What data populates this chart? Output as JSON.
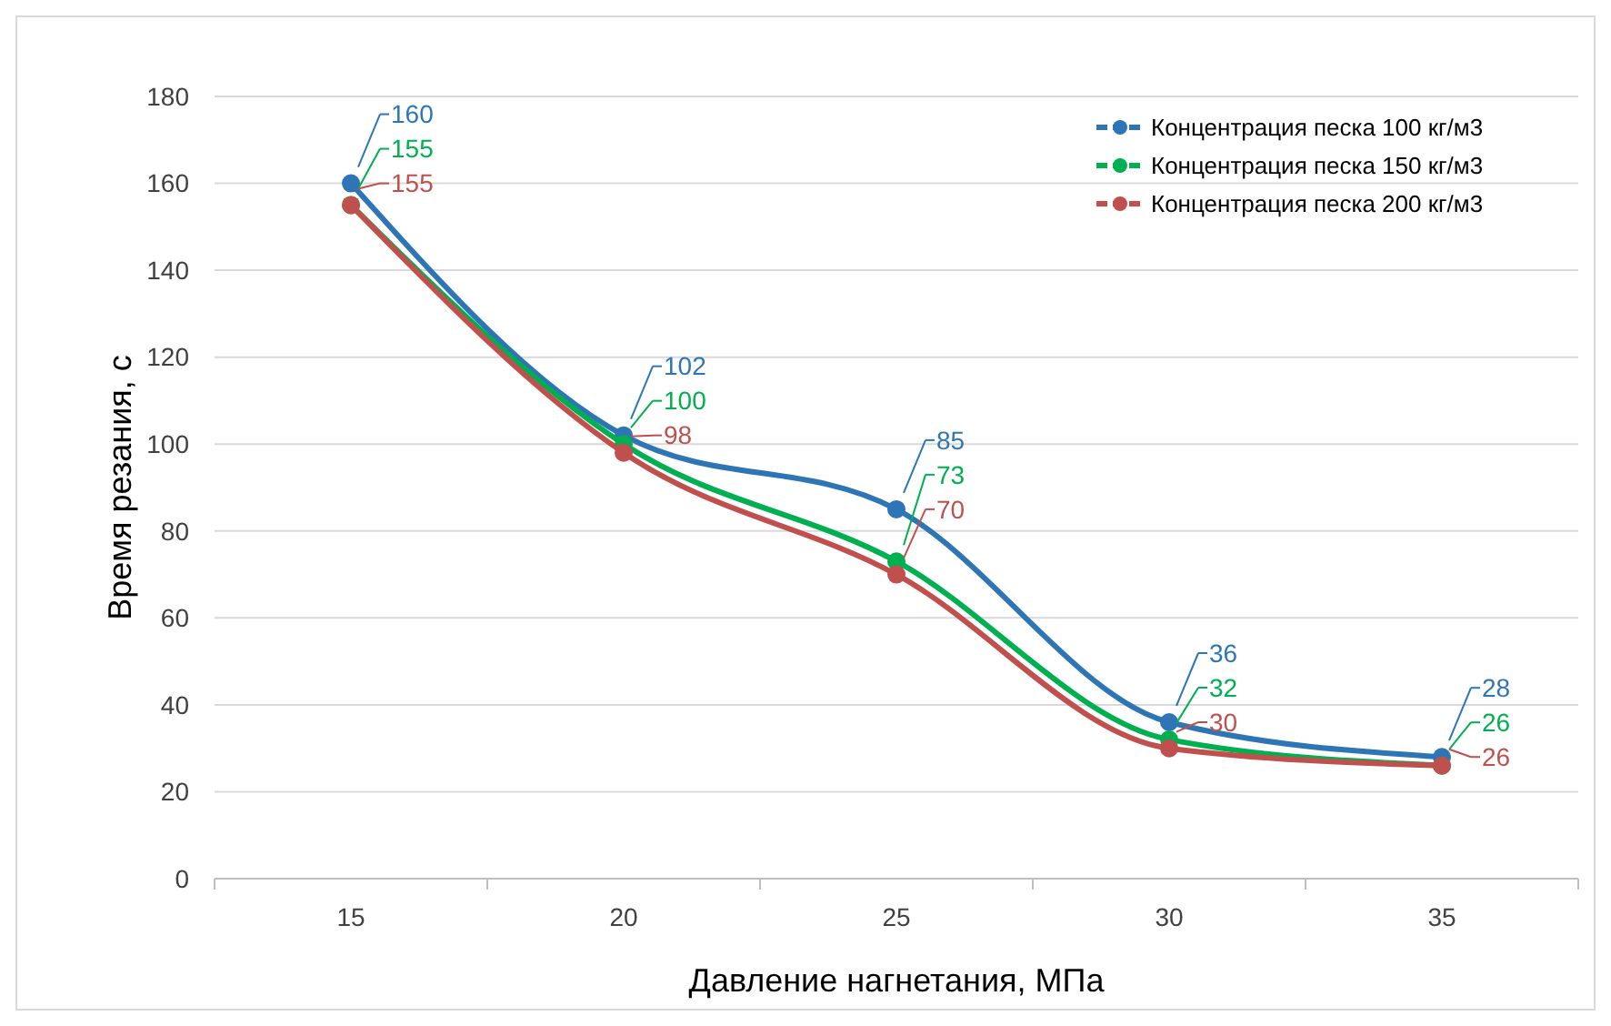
{
  "chart_data": {
    "type": "line",
    "xlabel": "Давление нагнетания, МПа",
    "ylabel": "Время резания, с",
    "categories": [
      "15",
      "20",
      "25",
      "30",
      "35"
    ],
    "series": [
      {
        "name": "Концентрация песка 100 кг/м3",
        "color": "#2e75b6",
        "values": [
          160,
          102,
          85,
          36,
          28
        ]
      },
      {
        "name": "Концентрация песка 150 кг/м3",
        "color": "#00b050",
        "values": [
          155,
          100,
          73,
          32,
          26
        ]
      },
      {
        "name": "Концентрация песка 200 кг/м3",
        "color": "#c0504d",
        "values": [
          155,
          98,
          70,
          30,
          26
        ]
      }
    ],
    "ylim": [
      0,
      180
    ],
    "yticks": [
      0,
      20,
      40,
      60,
      80,
      100,
      120,
      140,
      160,
      180
    ],
    "grid": "y",
    "legend": "top right",
    "marker": "circle",
    "line_style": "solid",
    "data_labels": true
  }
}
